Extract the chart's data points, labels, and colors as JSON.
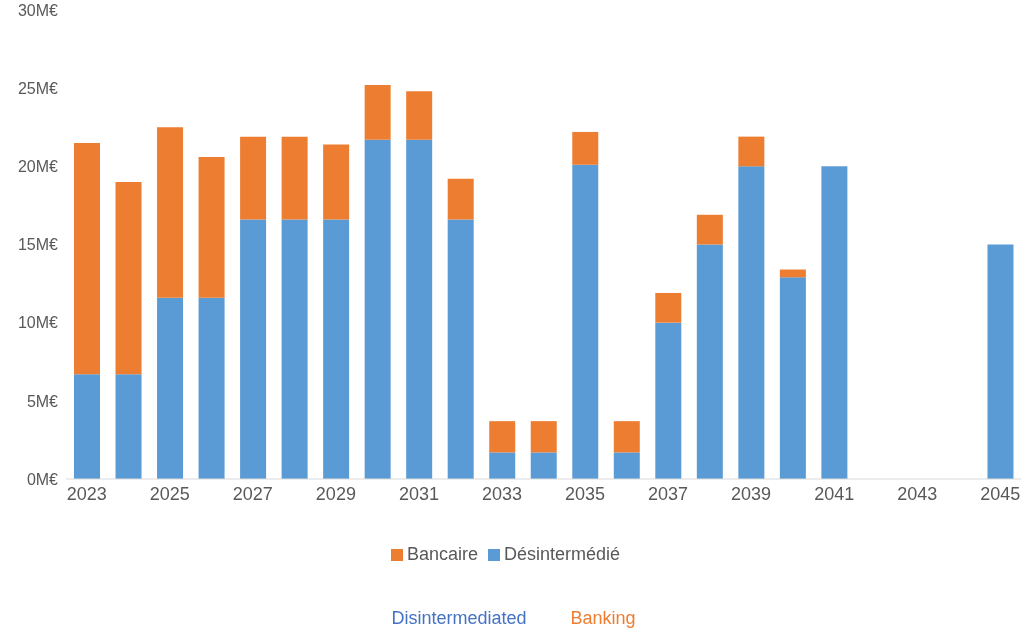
{
  "chart_data": {
    "type": "bar",
    "stacked": true,
    "categories": [
      "2023",
      null,
      "2025",
      null,
      "2027",
      null,
      "2029",
      null,
      "2031",
      null,
      "2033",
      null,
      "2035",
      null,
      "2037",
      null,
      "2039",
      null,
      "2041",
      null,
      "2043",
      null,
      "2045"
    ],
    "series": [
      {
        "name": "Désintermédié",
        "color": "#5b9bd5",
        "values": [
          6.7,
          6.7,
          11.6,
          11.6,
          16.6,
          16.6,
          16.6,
          21.7,
          21.7,
          16.6,
          1.7,
          1.7,
          20.1,
          1.7,
          10,
          15,
          20,
          12.9,
          20,
          0,
          0,
          0,
          15
        ]
      },
      {
        "name": "Bancaire",
        "color": "#ed7d31",
        "values": [
          14.8,
          12.3,
          10.9,
          9,
          5.3,
          5.3,
          4.8,
          3.5,
          3.1,
          2.6,
          2,
          2,
          2.1,
          2,
          1.9,
          1.9,
          1.9,
          0.5,
          0,
          0,
          0,
          0,
          0
        ]
      }
    ],
    "ylim": [
      0,
      30
    ],
    "yticks": [
      {
        "value": 0,
        "label": "0M€"
      },
      {
        "value": 5,
        "label": "5M€"
      },
      {
        "value": 10,
        "label": "10M€"
      },
      {
        "value": 15,
        "label": "15M€"
      },
      {
        "value": 20,
        "label": "20M€"
      },
      {
        "value": 25,
        "label": "25M€"
      },
      {
        "value": 30,
        "label": "30M€"
      }
    ],
    "grid": false,
    "legend": "bottom",
    "annotations": [
      "Disintermediated",
      "Banking"
    ]
  }
}
